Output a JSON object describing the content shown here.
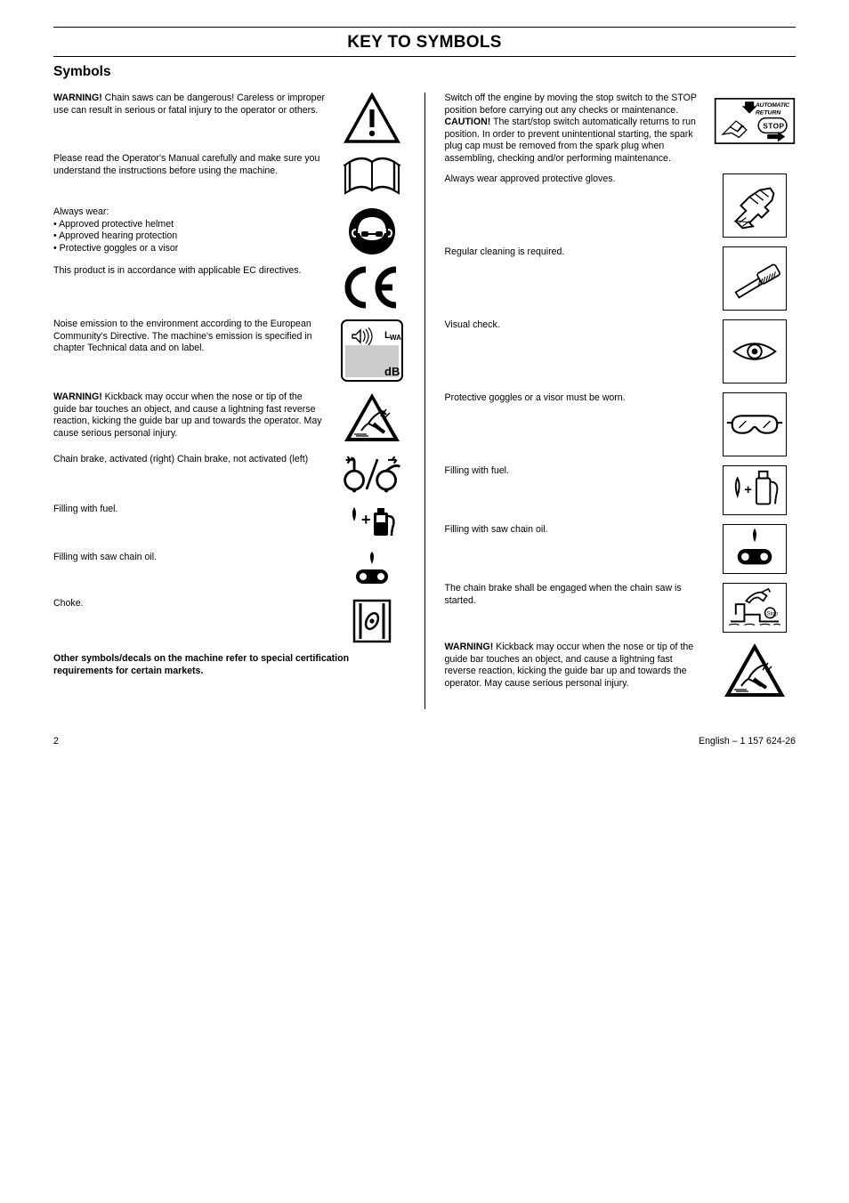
{
  "page_number": "2",
  "doc_ref": "English – 1 157 624-26",
  "section_title": "KEY TO SYMBOLS",
  "subsection_title": "Symbols",
  "left_entries": [
    {
      "key": "warning",
      "html": "<b>WARNING!</b> Chain saws can be dangerous! Careless or improper use can result in serious or fatal injury to the operator or others."
    },
    {
      "key": "read_manual",
      "html": "Please read the Operator's Manual carefully and make sure you understand the instructions before using the machine."
    },
    {
      "key": "ppe",
      "html": "Always wear:<br>• Approved protective helmet<br>• Approved hearing protection<br>• Protective goggles or a visor"
    },
    {
      "key": "ce",
      "html": "This product is in accordance with applicable EC directives."
    },
    {
      "key": "noise",
      "html": "Noise emission to the environment according to the European Community's Directive. The machine's emission is specified in chapter Technical data and on label."
    },
    {
      "key": "kickback",
      "html": "<b>WARNING!</b> Kickback may occur when the nose or tip of the guide bar touches an object, and cause a lightning fast reverse reaction, kicking the guide bar up and towards the operator. May cause serious personal injury."
    },
    {
      "key": "chain_brake",
      "html": "Chain brake, activated (right) Chain brake, not activated (left)"
    },
    {
      "key": "fuel",
      "html": "Filling with fuel."
    },
    {
      "key": "chain_oil",
      "html": "Filling with saw chain oil."
    },
    {
      "key": "choke",
      "html": "Choke."
    },
    {
      "key": "other",
      "html": "<b>Other symbols/decals on the machine refer to special certification requirements for certain markets.</b>"
    }
  ],
  "right_entries": [
    {
      "key": "stop",
      "html": "Switch off the engine by moving the stop switch to the STOP position before carrying out any checks or maintenance. <b>CAUTION!</b> The start/stop switch automatically returns to run position. In order to prevent unintentional starting, the spark plug cap must be removed from the spark plug when assembling, checking and/or performing maintenance."
    },
    {
      "key": "gloves",
      "html": "Always wear approved protective gloves."
    },
    {
      "key": "clean",
      "html": "Regular cleaning is required."
    },
    {
      "key": "eye",
      "html": "Visual check."
    },
    {
      "key": "goggles",
      "html": "Protective goggles or a visor must be worn."
    },
    {
      "key": "fuel2",
      "html": "Filling with fuel."
    },
    {
      "key": "chain_oil2",
      "html": "Filling with saw chain oil."
    },
    {
      "key": "brake_on",
      "html": "The chain brake shall be engaged when the chain saw is started."
    },
    {
      "key": "kickback2",
      "html": "<b>WARNING!</b> Kickback may occur when the nose or tip of the guide bar touches an object, and cause a lightning fast reverse reaction, kicking the guide bar up and towards the operator. May cause serious personal injury."
    }
  ]
}
